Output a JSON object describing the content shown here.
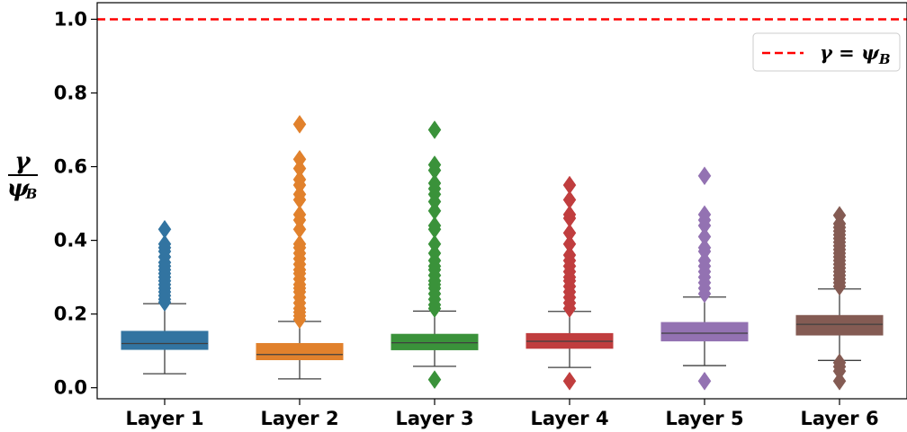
{
  "chart_data": {
    "type": "box",
    "title": "",
    "xlabel": "",
    "ylabel": {
      "numerator": "γ",
      "denominator": "ψ",
      "subscript": "B"
    },
    "ylim": [
      -0.03,
      1.045
    ],
    "yticks": [
      "0.0",
      "0.2",
      "0.4",
      "0.6",
      "0.8",
      "1.0"
    ],
    "yticks_values": [
      0.0,
      0.2,
      0.4,
      0.6,
      0.8,
      1.0
    ],
    "grid": false,
    "reference_line": {
      "y": 1.0,
      "style": "dashed",
      "color": "#ff0000"
    },
    "legend": {
      "position": "top-right",
      "label_main": "γ = ψ",
      "label_sub": "B"
    },
    "categories": [
      "Layer 1",
      "Layer 2",
      "Layer 3",
      "Layer 4",
      "Layer 5",
      "Layer 6"
    ],
    "colors": [
      "#3274a1",
      "#e1812c",
      "#3a923a",
      "#c03d3e",
      "#9372b2",
      "#845b53"
    ],
    "series": [
      {
        "q1": 0.104,
        "median": 0.12,
        "q3": 0.153,
        "whisker_low": 0.038,
        "whisker_high": 0.228,
        "outliers": [
          0.232,
          0.24,
          0.25,
          0.26,
          0.27,
          0.28,
          0.29,
          0.3,
          0.31,
          0.32,
          0.33,
          0.34,
          0.355,
          0.37,
          0.38,
          0.39,
          0.43
        ]
      },
      {
        "q1": 0.076,
        "median": 0.09,
        "q3": 0.12,
        "whisker_low": 0.024,
        "whisker_high": 0.18,
        "outliers": [
          0.185,
          0.195,
          0.205,
          0.215,
          0.23,
          0.245,
          0.26,
          0.27,
          0.28,
          0.295,
          0.31,
          0.32,
          0.335,
          0.35,
          0.365,
          0.38,
          0.39,
          0.43,
          0.455,
          0.47,
          0.51,
          0.525,
          0.55,
          0.565,
          0.595,
          0.62,
          0.715
        ]
      },
      {
        "q1": 0.103,
        "median": 0.122,
        "q3": 0.145,
        "whisker_low": 0.058,
        "whisker_high": 0.208,
        "outliers": [
          0.022,
          0.215,
          0.225,
          0.24,
          0.255,
          0.27,
          0.28,
          0.29,
          0.305,
          0.32,
          0.33,
          0.345,
          0.365,
          0.39,
          0.43,
          0.44,
          0.48,
          0.505,
          0.525,
          0.54,
          0.555,
          0.59,
          0.605,
          0.7
        ]
      },
      {
        "q1": 0.107,
        "median": 0.126,
        "q3": 0.147,
        "whisker_low": 0.055,
        "whisker_high": 0.207,
        "outliers": [
          0.018,
          0.215,
          0.23,
          0.245,
          0.26,
          0.275,
          0.29,
          0.3,
          0.315,
          0.33,
          0.345,
          0.36,
          0.39,
          0.42,
          0.46,
          0.47,
          0.51,
          0.55
        ]
      },
      {
        "q1": 0.127,
        "median": 0.148,
        "q3": 0.177,
        "whisker_low": 0.06,
        "whisker_high": 0.246,
        "outliers": [
          0.018,
          0.255,
          0.27,
          0.285,
          0.3,
          0.315,
          0.33,
          0.345,
          0.37,
          0.38,
          0.41,
          0.44,
          0.455,
          0.47,
          0.575
        ]
      },
      {
        "q1": 0.143,
        "median": 0.172,
        "q3": 0.196,
        "whisker_low": 0.074,
        "whisker_high": 0.268,
        "outliers": [
          0.018,
          0.045,
          0.057,
          0.068,
          0.275,
          0.285,
          0.295,
          0.305,
          0.315,
          0.325,
          0.335,
          0.345,
          0.355,
          0.365,
          0.375,
          0.385,
          0.395,
          0.405,
          0.415,
          0.425,
          0.435,
          0.445,
          0.468
        ]
      }
    ]
  }
}
